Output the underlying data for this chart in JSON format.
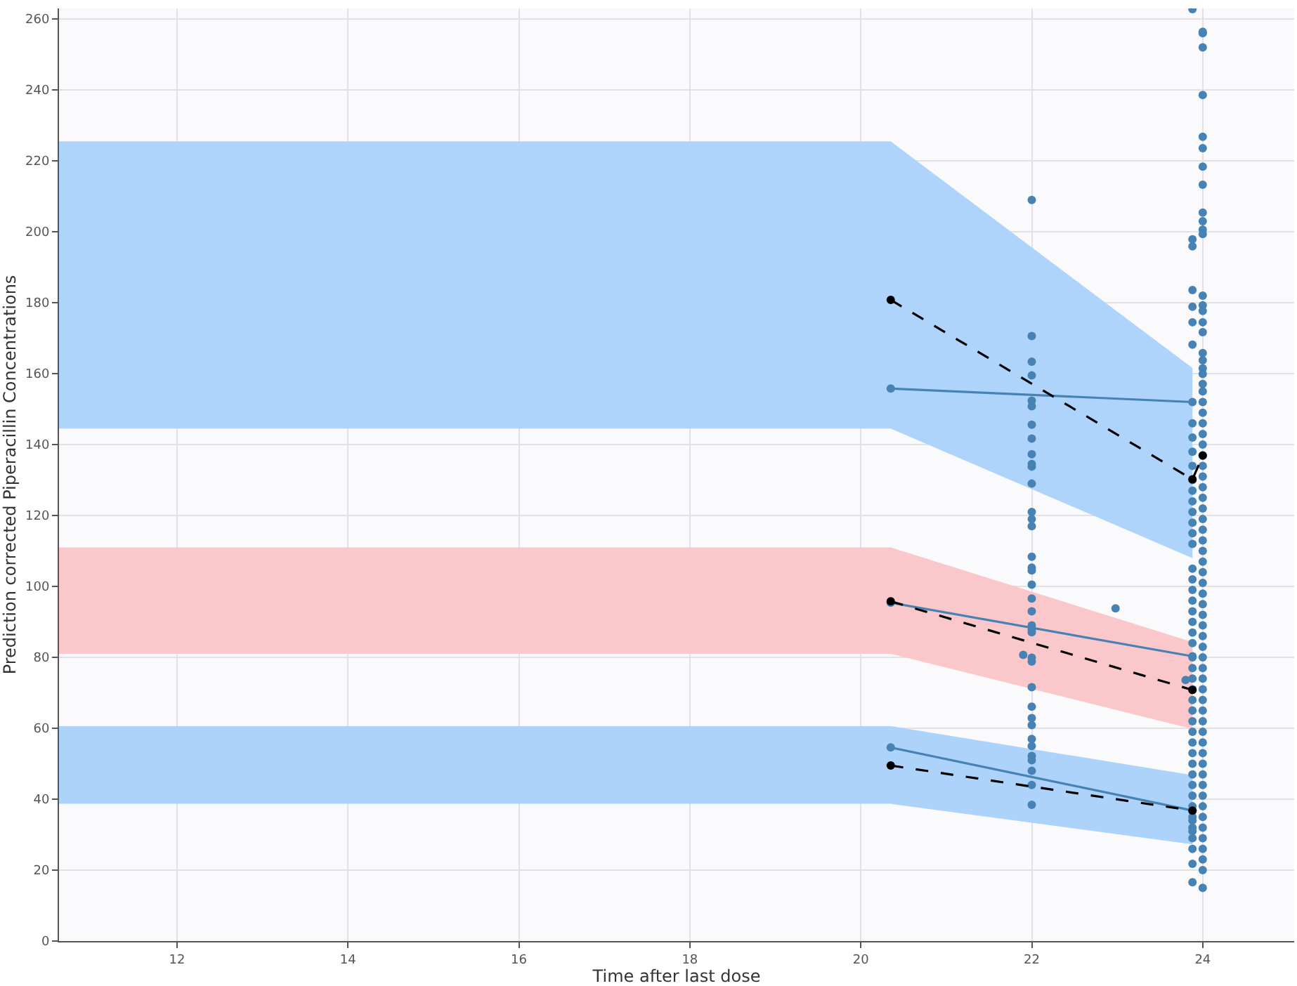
{
  "chart_data": {
    "type": "line",
    "xlabel": "Time after last dose",
    "ylabel": "Prediction corrected Piperacillin Concentrations",
    "xlim": [
      10.62,
      25.07
    ],
    "xticks": [
      12,
      14,
      16,
      18,
      20,
      22,
      24
    ],
    "ylim": [
      0,
      263
    ],
    "yticks": [
      0,
      20,
      40,
      60,
      80,
      100,
      120,
      140,
      160,
      180,
      200,
      220,
      240,
      260
    ],
    "grid": true,
    "series": [
      {
        "type": "scatter",
        "color": "#4682b4",
        "marker": "circle",
        "x": [
          22,
          22,
          22,
          22,
          22,
          22,
          22,
          22,
          22,
          22,
          22,
          22,
          22,
          22,
          22,
          22,
          22,
          22,
          22,
          22,
          22,
          22,
          22,
          22,
          22,
          22,
          22,
          21.9,
          22,
          22,
          22,
          22,
          22,
          22,
          22,
          22,
          22,
          22,
          22.98,
          23.8,
          23.88,
          23.88,
          23.88,
          23.88,
          23.88,
          23.88,
          23.88,
          23.88,
          23.88,
          23.88,
          23.88,
          23.88,
          23.88,
          23.88,
          23.88,
          23.88,
          23.88,
          23.88,
          23.88,
          23.88,
          23.88,
          23.88,
          23.88,
          23.88,
          23.88,
          23.88,
          23.88,
          23.88,
          23.88,
          23.88,
          23.88,
          23.88,
          23.88,
          23.88,
          23.88,
          23.88,
          23.88,
          23.88,
          23.88,
          23.88,
          23.88,
          23.88,
          23.88,
          23.88,
          23.88,
          23.88,
          23.88,
          23.88,
          23.88,
          24,
          24,
          24,
          24,
          24,
          24,
          24,
          24,
          24,
          24,
          24,
          24,
          24,
          24,
          24,
          24,
          24,
          24,
          24,
          24,
          24,
          24,
          24,
          24,
          24,
          24,
          24,
          24,
          24,
          24,
          24,
          24,
          24,
          24,
          24,
          24,
          24,
          24,
          24,
          24,
          24,
          24,
          24,
          24,
          24,
          24,
          24,
          24,
          24,
          24,
          24,
          24,
          24,
          24,
          24,
          24,
          24,
          24,
          24,
          24,
          24,
          24,
          24,
          24,
          24,
          24,
          24,
          24,
          24
        ],
        "values": [
          209,
          170.6,
          163.4,
          159.5,
          152.4,
          150.8,
          145.6,
          141.7,
          137.3,
          134.5,
          133.8,
          129,
          121,
          119,
          117,
          108.4,
          105.3,
          104.5,
          100.5,
          96.6,
          93,
          89,
          87.8,
          87.1,
          79.9,
          78.8,
          71.6,
          80.7,
          66.1,
          62.9,
          60.9,
          57,
          52.2,
          51,
          38.4,
          55,
          48,
          44,
          93.8,
          73.6,
          262.8,
          197.9,
          195.9,
          183.6,
          178.9,
          174.5,
          168.2,
          146,
          142,
          138,
          134,
          130,
          127,
          124,
          121,
          118,
          115,
          112,
          105,
          102,
          99,
          96,
          93,
          90,
          87,
          84,
          80,
          77,
          74,
          71,
          68,
          65,
          62,
          59,
          56,
          53,
          50,
          47,
          44,
          41,
          38,
          35,
          32,
          29,
          26,
          21.8,
          16.6,
          31,
          34,
          256.4,
          256,
          252,
          238.6,
          226.8,
          223.6,
          218.4,
          213.3,
          205.4,
          203,
          200.6,
          199.4,
          182,
          179.3,
          177.7,
          174.5,
          171.7,
          165.8,
          163.8,
          161.5,
          159.9,
          157.1,
          155,
          152,
          149,
          146,
          143,
          140,
          137,
          134,
          131,
          128,
          125,
          122,
          119,
          116,
          113,
          110,
          107,
          104,
          101,
          98,
          95,
          92,
          89,
          86,
          83,
          80,
          77,
          74,
          71,
          68,
          65,
          62,
          59,
          56,
          53,
          50,
          47,
          44,
          41,
          38,
          35,
          32,
          29,
          26,
          23,
          20,
          15
        ]
      },
      {
        "color": "#aed4fb",
        "x": [
          10.62,
          20.35,
          23.88
        ],
        "values": [
          null,
          null,
          null
        ],
        "lower": [
          144.5,
          144.5,
          108
        ],
        "upper": [
          225.5,
          225.5,
          161.6
        ]
      },
      {
        "color": "#fac8ca",
        "x": [
          10.62,
          20.35,
          23.88
        ],
        "values": [
          null,
          null,
          null
        ],
        "lower": [
          81,
          81,
          59.8
        ],
        "upper": [
          111,
          111,
          84.3
        ]
      },
      {
        "color": "#add3fb",
        "x": [
          10.62,
          20.35,
          23.88
        ],
        "values": [
          null,
          null,
          null
        ],
        "lower": [
          38.7,
          38.7,
          27.3
        ],
        "upper": [
          60.6,
          60.6,
          46.8
        ]
      },
      {
        "color": "#4682b4",
        "marker": "circle",
        "line_style": "solid",
        "x": [
          20.35,
          23.88
        ],
        "values": [
          155.8,
          152
        ]
      },
      {
        "color": "#4682b4",
        "marker": "circle",
        "line_style": "solid",
        "x": [
          20.35,
          23.88
        ],
        "values": [
          95.4,
          80.3
        ]
      },
      {
        "color": "#4682b4",
        "marker": "circle",
        "line_style": "solid",
        "x": [
          20.35,
          23.88
        ],
        "values": [
          54.6,
          36.8
        ]
      },
      {
        "color": "#000000",
        "marker": "circle",
        "line_style": "dashed",
        "x": [
          20.35,
          23.88,
          24
        ],
        "values": [
          180.8,
          130.2,
          136.9
        ]
      },
      {
        "color": "#000000",
        "marker": "circle",
        "line_style": "dashed",
        "x": [
          20.35,
          23.88
        ],
        "values": [
          95.8,
          70.8
        ]
      },
      {
        "color": "#000000",
        "marker": "circle",
        "line_style": "dashed",
        "x": [
          20.35,
          23.88
        ],
        "values": [
          49.5,
          36.8
        ]
      }
    ]
  }
}
